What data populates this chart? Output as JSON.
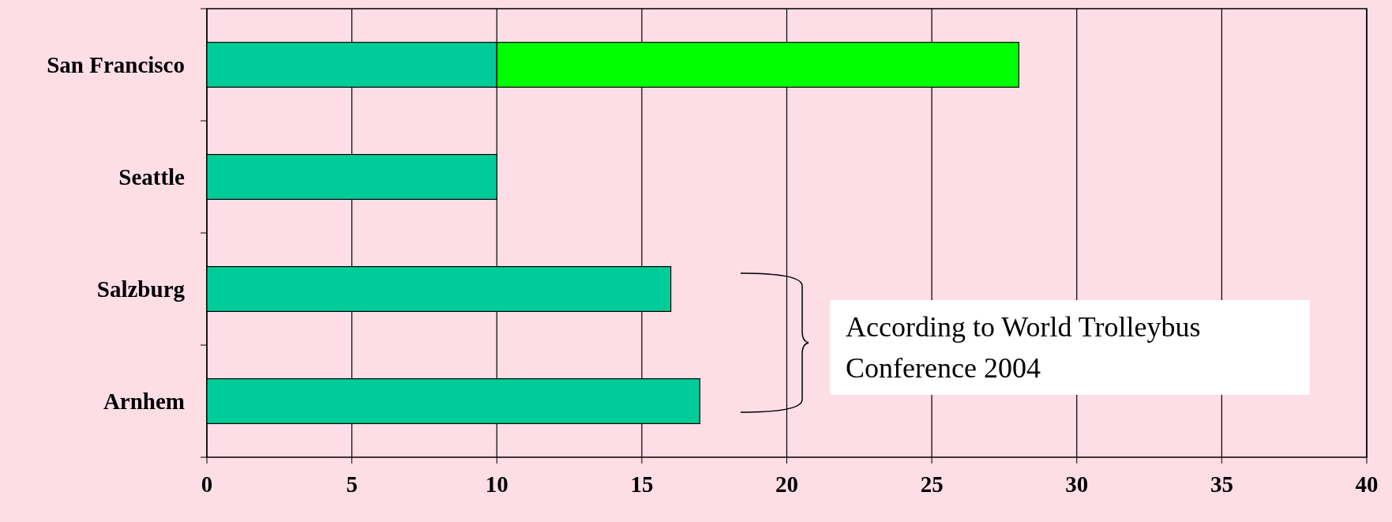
{
  "chart_data": {
    "type": "bar",
    "orientation": "horizontal",
    "stacked": true,
    "categories": [
      "San Francisco",
      "Seattle",
      "Salzburg",
      "Arnhem"
    ],
    "series": [
      {
        "color": "#00cc99",
        "values": [
          10,
          10,
          16,
          17
        ]
      },
      {
        "color": "#00ff00",
        "values": [
          18,
          null,
          null,
          null
        ]
      }
    ],
    "xlim": [
      0,
      40
    ],
    "xticks": [
      0,
      5,
      10,
      15,
      20,
      25,
      30,
      35,
      40
    ],
    "grid": "x",
    "annotations": [
      "According to World Trolleybus Conference 2004"
    ]
  }
}
